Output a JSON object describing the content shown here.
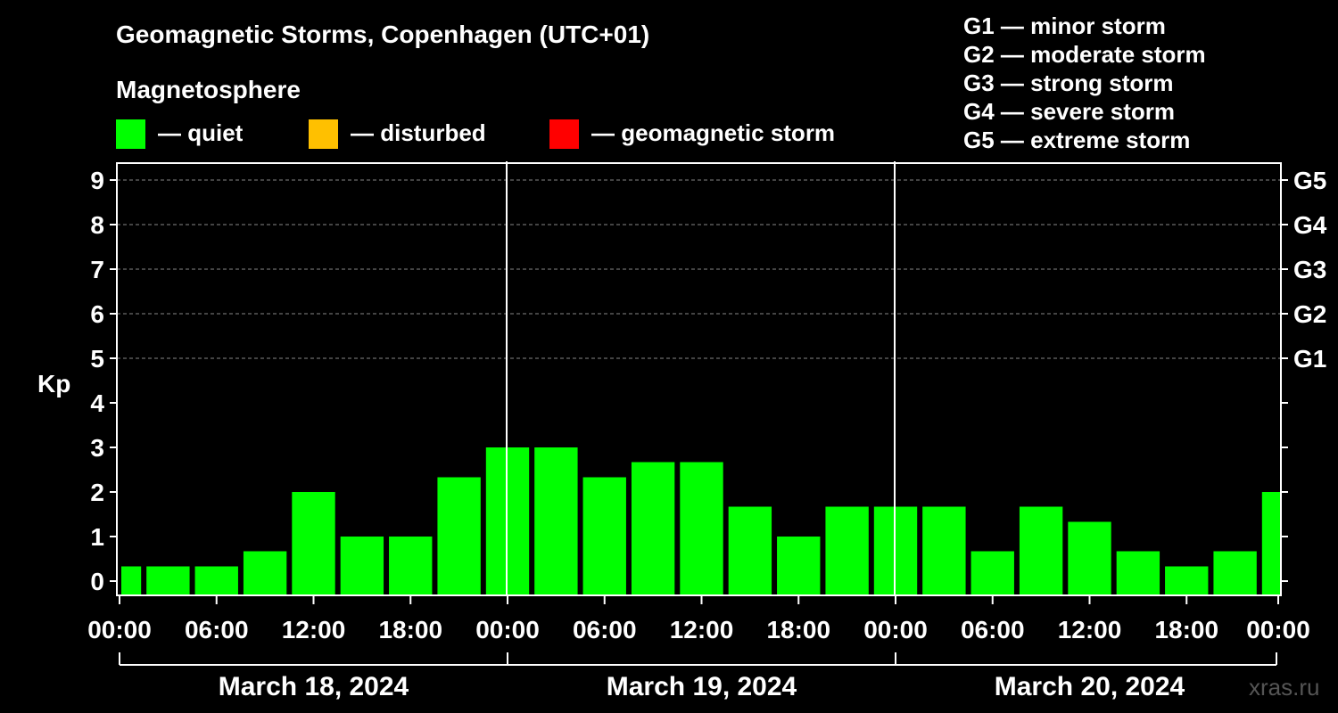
{
  "chart_data": {
    "type": "bar",
    "title": "Geomagnetic Storms, Copenhagen (UTC+01)",
    "subtitle": "Magnetosphere",
    "ylabel": "Kp",
    "ylim": [
      0,
      9
    ],
    "yticks": [
      "0",
      "1",
      "2",
      "3",
      "4",
      "5",
      "6",
      "7",
      "8",
      "9"
    ],
    "right_ticks": [
      {
        "kp": 5,
        "label": "G1"
      },
      {
        "kp": 6,
        "label": "G2"
      },
      {
        "kp": 7,
        "label": "G3"
      },
      {
        "kp": 8,
        "label": "G4"
      },
      {
        "kp": 9,
        "label": "G5"
      }
    ],
    "legend": [
      {
        "label": "— quiet",
        "color": "#00ff00"
      },
      {
        "label": "— disturbed",
        "color": "#ffc000"
      },
      {
        "label": "— geomagnetic storm",
        "color": "#ff0000"
      }
    ],
    "scale_legend": [
      "G1 — minor storm",
      "G2 — moderate storm",
      "G3 — strong storm",
      "G4 — severe storm",
      "G5 — extreme storm"
    ],
    "xticks": [
      "00:00",
      "06:00",
      "12:00",
      "18:00",
      "00:00",
      "06:00",
      "12:00",
      "18:00",
      "00:00",
      "06:00",
      "12:00",
      "18:00",
      "00:00"
    ],
    "days": [
      "March 18, 2024",
      "March 19, 2024",
      "March 20, 2024"
    ],
    "bar_color": "#00ff00",
    "values": [
      0.33,
      0.33,
      0.33,
      0.67,
      2.0,
      1.0,
      1.0,
      2.33,
      3.0,
      3.0,
      2.33,
      2.67,
      2.67,
      1.67,
      1.0,
      1.67,
      1.67,
      1.67,
      0.67,
      1.67,
      1.33,
      0.67,
      0.33,
      0.67,
      2.0
    ]
  },
  "watermark": "xras.ru"
}
